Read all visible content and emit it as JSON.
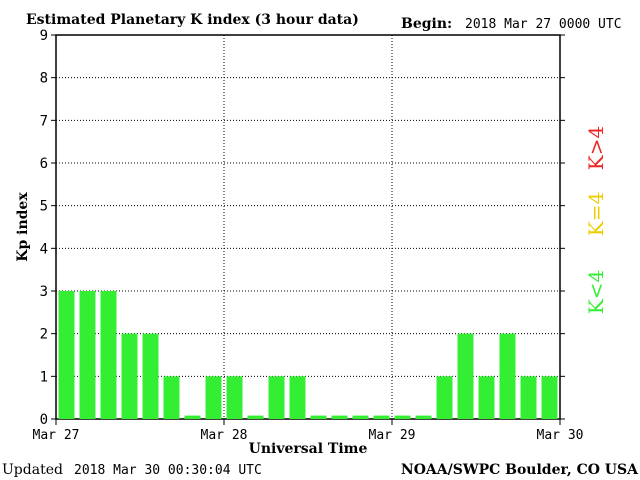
{
  "header": {
    "title": "Estimated Planetary K index (3 hour data)",
    "begin_label": "Begin:",
    "begin_value": "2018 Mar 27 0000 UTC"
  },
  "footer": {
    "updated_label": "Updated",
    "updated_value": "2018 Mar 30 00:30:04 UTC",
    "credit": "NOAA/SWPC Boulder, CO USA"
  },
  "legend": {
    "items": [
      {
        "label": "K<4",
        "color": "#33ee33"
      },
      {
        "label": "K=4",
        "color": "#eecc00"
      },
      {
        "label": "K>4",
        "color": "#ee2222"
      }
    ]
  },
  "chart_data": {
    "type": "bar",
    "title": "Estimated Planetary K index (3 hour data)",
    "xlabel": "Universal Time",
    "ylabel": "Kp index",
    "ylim": [
      0,
      9
    ],
    "yticks": [
      0,
      1,
      2,
      3,
      4,
      5,
      6,
      7,
      8,
      9
    ],
    "xtick_labels": [
      "Mar 27",
      "Mar 28",
      "Mar 29",
      "Mar 30"
    ],
    "bar_interval_hours": 3,
    "grid": true,
    "values": [
      3,
      3,
      3,
      2,
      2,
      1,
      0,
      1,
      1,
      0,
      1,
      1,
      0,
      0,
      0,
      0,
      0,
      0,
      1,
      2,
      1,
      2,
      1,
      1
    ],
    "bar_color": "#33ee33"
  }
}
